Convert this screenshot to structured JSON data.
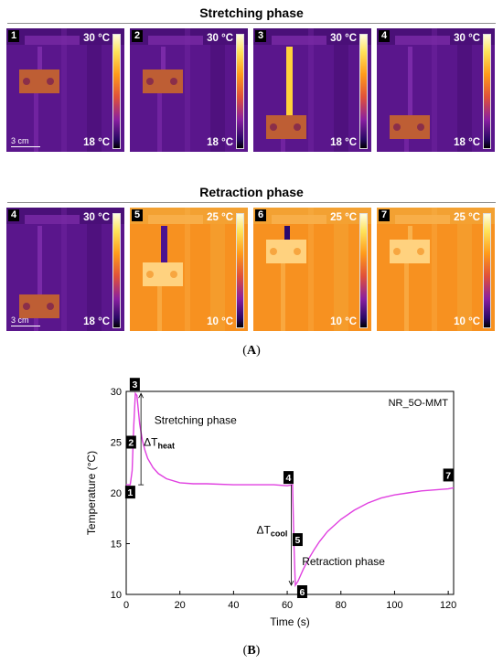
{
  "figure": {
    "stretching_title": "Stretching phase",
    "retraction_title": "Retraction phase",
    "caption_a": "A",
    "caption_b": "B",
    "scale_bar_label": "3 cm"
  },
  "stretching_panels": [
    {
      "num": "1",
      "tmax": "30 °C",
      "tmin": "18 °C",
      "palette": "purple",
      "state": "rest",
      "scale": true
    },
    {
      "num": "2",
      "tmax": "30 °C",
      "tmin": "18 °C",
      "palette": "purple",
      "state": "stretch-start",
      "scale": false
    },
    {
      "num": "3",
      "tmax": "30 °C",
      "tmin": "18 °C",
      "palette": "purple",
      "state": "stretched-hot",
      "scale": false
    },
    {
      "num": "4",
      "tmax": "30 °C",
      "tmin": "18 °C",
      "palette": "purple",
      "state": "stretched-equilibrium",
      "scale": false
    }
  ],
  "retraction_panels": [
    {
      "num": "4",
      "tmax": "30 °C",
      "tmin": "18 °C",
      "palette": "purple",
      "state": "stretched-equilibrium",
      "scale": true
    },
    {
      "num": "5",
      "tmax": "25 °C",
      "tmin": "10 °C",
      "palette": "orange",
      "state": "retract-start",
      "scale": false
    },
    {
      "num": "6",
      "tmax": "25 °C",
      "tmin": "10 °C",
      "palette": "orange",
      "state": "retracted-cold",
      "scale": false
    },
    {
      "num": "7",
      "tmax": "25 °C",
      "tmin": "10 °C",
      "palette": "orange",
      "state": "retracted-recovered",
      "scale": false
    }
  ],
  "chart_data": {
    "type": "line",
    "title": "",
    "legend_text": "NR_5O-MMT",
    "xlabel": "Time (s)",
    "ylabel": "Temperature (°C)",
    "xlim": [
      0,
      122
    ],
    "ylim": [
      10,
      30
    ],
    "xticks": [
      0,
      20,
      40,
      60,
      80,
      100,
      120
    ],
    "yticks": [
      10,
      15,
      20,
      25,
      30
    ],
    "line_color": "#e040e0",
    "series": [
      {
        "x": [
          0,
          1.5,
          2.2,
          2.8,
          3.4,
          4,
          5,
          6,
          7,
          8,
          10,
          12,
          15,
          20,
          25,
          30,
          40,
          50,
          55,
          60,
          62,
          62.5,
          63,
          64,
          66,
          68,
          70,
          72,
          75,
          80,
          85,
          90,
          95,
          100,
          105,
          110,
          115,
          120,
          122
        ],
        "y": [
          20.8,
          20.8,
          22.2,
          26.5,
          29.8,
          29.6,
          26.8,
          25.2,
          24.2,
          23.4,
          22.5,
          21.9,
          21.4,
          21.0,
          20.9,
          20.9,
          20.8,
          20.8,
          20.8,
          20.7,
          20.8,
          15.0,
          10.9,
          11.3,
          12.5,
          13.5,
          14.4,
          15.2,
          16.2,
          17.4,
          18.3,
          19.0,
          19.5,
          19.8,
          20.0,
          20.2,
          20.3,
          20.4,
          20.5
        ]
      }
    ],
    "point_markers": [
      {
        "label": "1",
        "x": 1.5,
        "y": 20.8
      },
      {
        "label": "2",
        "x": 2.5,
        "y": 25.0
      },
      {
        "label": "3",
        "x": 3.2,
        "y": 29.8
      },
      {
        "label": "4",
        "x": 61.5,
        "y": 20.8
      },
      {
        "label": "5",
        "x": 62.5,
        "y": 15.4
      },
      {
        "label": "6",
        "x": 63.2,
        "y": 10.9
      },
      {
        "label": "7",
        "x": 120,
        "y": 20.5
      }
    ],
    "annotations": {
      "stretching": "Stretching phase",
      "retraction": "Retraction phase",
      "delta_heat_main": "ΔT",
      "delta_heat_sub": "heat",
      "delta_cool_main": "ΔT",
      "delta_cool_sub": "cool"
    }
  }
}
